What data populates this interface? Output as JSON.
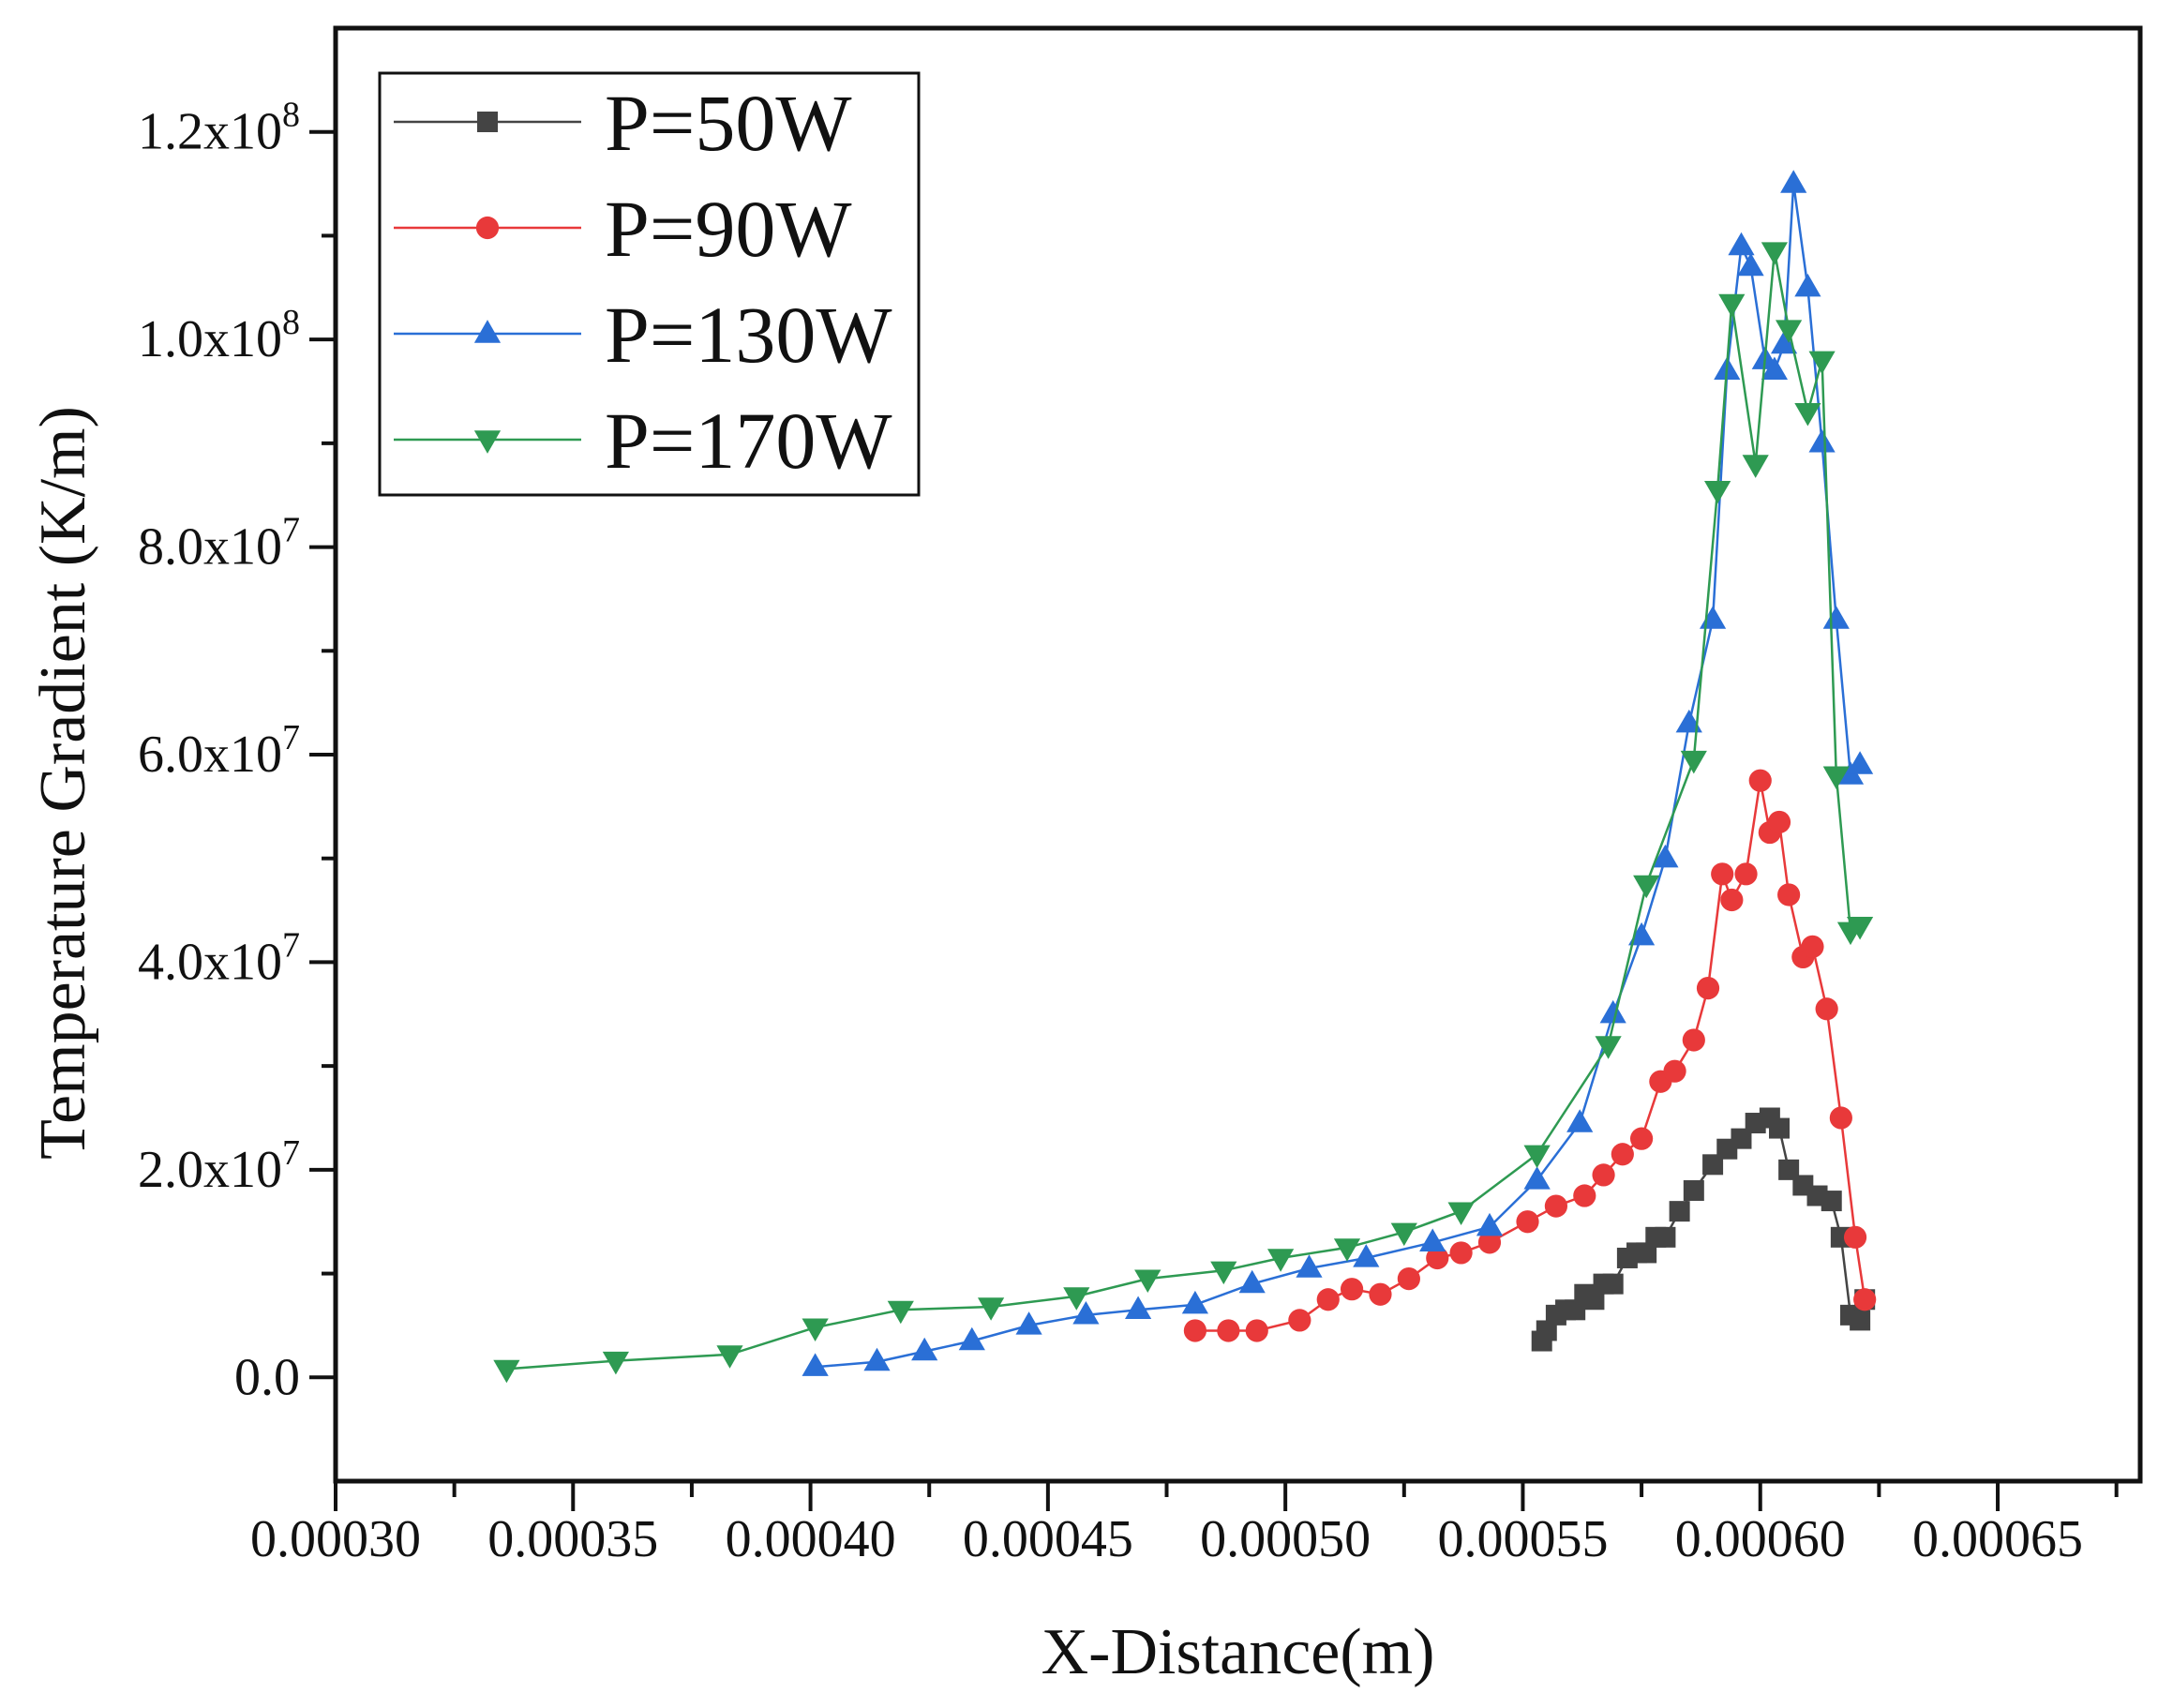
{
  "chart_data": {
    "type": "scatter",
    "xlabel": "X-Distance(m)",
    "ylabel": "Temperature  Gradient (K/m)",
    "xlim": [
      0.0003,
      0.00068
    ],
    "ylim": [
      -10000000,
      130000000
    ],
    "x_ticks": [
      0.0003,
      0.00035,
      0.0004,
      0.00045,
      0.0005,
      0.00055,
      0.0006,
      0.00065
    ],
    "x_tick_labels": [
      "0.00030",
      "0.00035",
      "0.00040",
      "0.00045",
      "0.00050",
      "0.00055",
      "0.00060",
      "0.00065"
    ],
    "y_ticks": [
      0,
      20000000,
      40000000,
      60000000,
      80000000,
      100000000,
      120000000
    ],
    "y_tick_labels": [
      {
        "base": "0.0",
        "exp": ""
      },
      {
        "base": "2.0x10",
        "exp": "7"
      },
      {
        "base": "4.0x10",
        "exp": "7"
      },
      {
        "base": "6.0x10",
        "exp": "7"
      },
      {
        "base": "8.0x10",
        "exp": "7"
      },
      {
        "base": "1.0x10",
        "exp": "8"
      },
      {
        "base": "1.2x10",
        "exp": "8"
      }
    ],
    "legend_position": "top-left",
    "grid": false,
    "series": [
      {
        "name": "P=50W",
        "color": "#444444",
        "marker": "square",
        "x": [
          0.000554,
          0.000555,
          0.000557,
          0.000559,
          0.000561,
          0.000563,
          0.000565,
          0.000567,
          0.000569,
          0.000572,
          0.000574,
          0.000576,
          0.000578,
          0.00058,
          0.000583,
          0.000586,
          0.00059,
          0.000593,
          0.000596,
          0.000599,
          0.000602,
          0.000604,
          0.000606,
          0.000609,
          0.000612,
          0.000615,
          0.000617,
          0.000619,
          0.000621,
          0.000622
        ],
        "y": [
          3500000,
          4500000,
          6000000,
          6500000,
          6500000,
          8000000,
          7500000,
          9000000,
          9000000,
          11500000,
          12000000,
          12000000,
          13500000,
          13500000,
          16000000,
          18000000,
          20500000,
          22000000,
          23000000,
          24500000,
          25000000,
          24000000,
          20000000,
          18500000,
          17500000,
          17000000,
          13500000,
          6000000,
          5500000,
          7500000
        ]
      },
      {
        "name": "P=90W",
        "color": "#e8393a",
        "marker": "circle",
        "x": [
          0.000481,
          0.000488,
          0.000494,
          0.000503,
          0.000509,
          0.000514,
          0.00052,
          0.000526,
          0.000532,
          0.000537,
          0.000543,
          0.000551,
          0.000557,
          0.000563,
          0.000567,
          0.000571,
          0.000575,
          0.000579,
          0.000582,
          0.000586,
          0.000589,
          0.000592,
          0.000594,
          0.000597,
          0.0006,
          0.000602,
          0.000604,
          0.000606,
          0.000609,
          0.000611,
          0.000614,
          0.000617,
          0.00062,
          0.000622
        ],
        "y": [
          4500000,
          4500000,
          4500000,
          5500000,
          7500000,
          8500000,
          8000000,
          9500000,
          11500000,
          12000000,
          13000000,
          15000000,
          16500000,
          17500000,
          19500000,
          21500000,
          23000000,
          28500000,
          29500000,
          32500000,
          37500000,
          48500000,
          46000000,
          48500000,
          57500000,
          52500000,
          53500000,
          46500000,
          40500000,
          41500000,
          35500000,
          25000000,
          13500000,
          7500000
        ]
      },
      {
        "name": "P=130W",
        "color": "#2a6fd6",
        "marker": "triangle-up",
        "x": [
          0.000401,
          0.000414,
          0.000424,
          0.000434,
          0.000446,
          0.000458,
          0.000469,
          0.000481,
          0.000493,
          0.000505,
          0.000517,
          0.000531,
          0.000543,
          0.000553,
          0.000562,
          0.000569,
          0.000575,
          0.00058,
          0.000585,
          0.00059,
          0.000593,
          0.000596,
          0.000598,
          0.000601,
          0.000603,
          0.000605,
          0.000607,
          0.00061,
          0.000613,
          0.000616,
          0.000619,
          0.000621
        ],
        "y": [
          1000000,
          1500000,
          2500000,
          3500000,
          5000000,
          6000000,
          6500000,
          7000000,
          9000000,
          10500000,
          11500000,
          13000000,
          14500000,
          19000000,
          24500000,
          35000000,
          42500000,
          50000000,
          63000000,
          73000000,
          97000000,
          109000000,
          107000000,
          98000000,
          97000000,
          99500000,
          115000000,
          105000000,
          90000000,
          73000000,
          58000000,
          59000000
        ]
      },
      {
        "name": "P=170W",
        "color": "#2e9a52",
        "marker": "triangle-down",
        "x": [
          0.000336,
          0.000359,
          0.000383,
          0.000401,
          0.000419,
          0.000438,
          0.000456,
          0.000471,
          0.000487,
          0.000499,
          0.000513,
          0.000525,
          0.000537,
          0.000553,
          0.000568,
          0.000576,
          0.000586,
          0.000591,
          0.000594,
          0.000599,
          0.000603,
          0.000606,
          0.00061,
          0.000613,
          0.000616,
          0.000619,
          0.000621
        ],
        "y": [
          800000,
          1600000,
          2200000,
          4800000,
          6500000,
          6800000,
          7800000,
          9500000,
          10300000,
          11500000,
          12500000,
          14000000,
          16000000,
          21500000,
          32000000,
          47500000,
          59500000,
          85500000,
          103500000,
          88000000,
          108500000,
          101000000,
          93000000,
          98000000,
          58000000,
          43000000,
          43500000
        ]
      }
    ]
  }
}
